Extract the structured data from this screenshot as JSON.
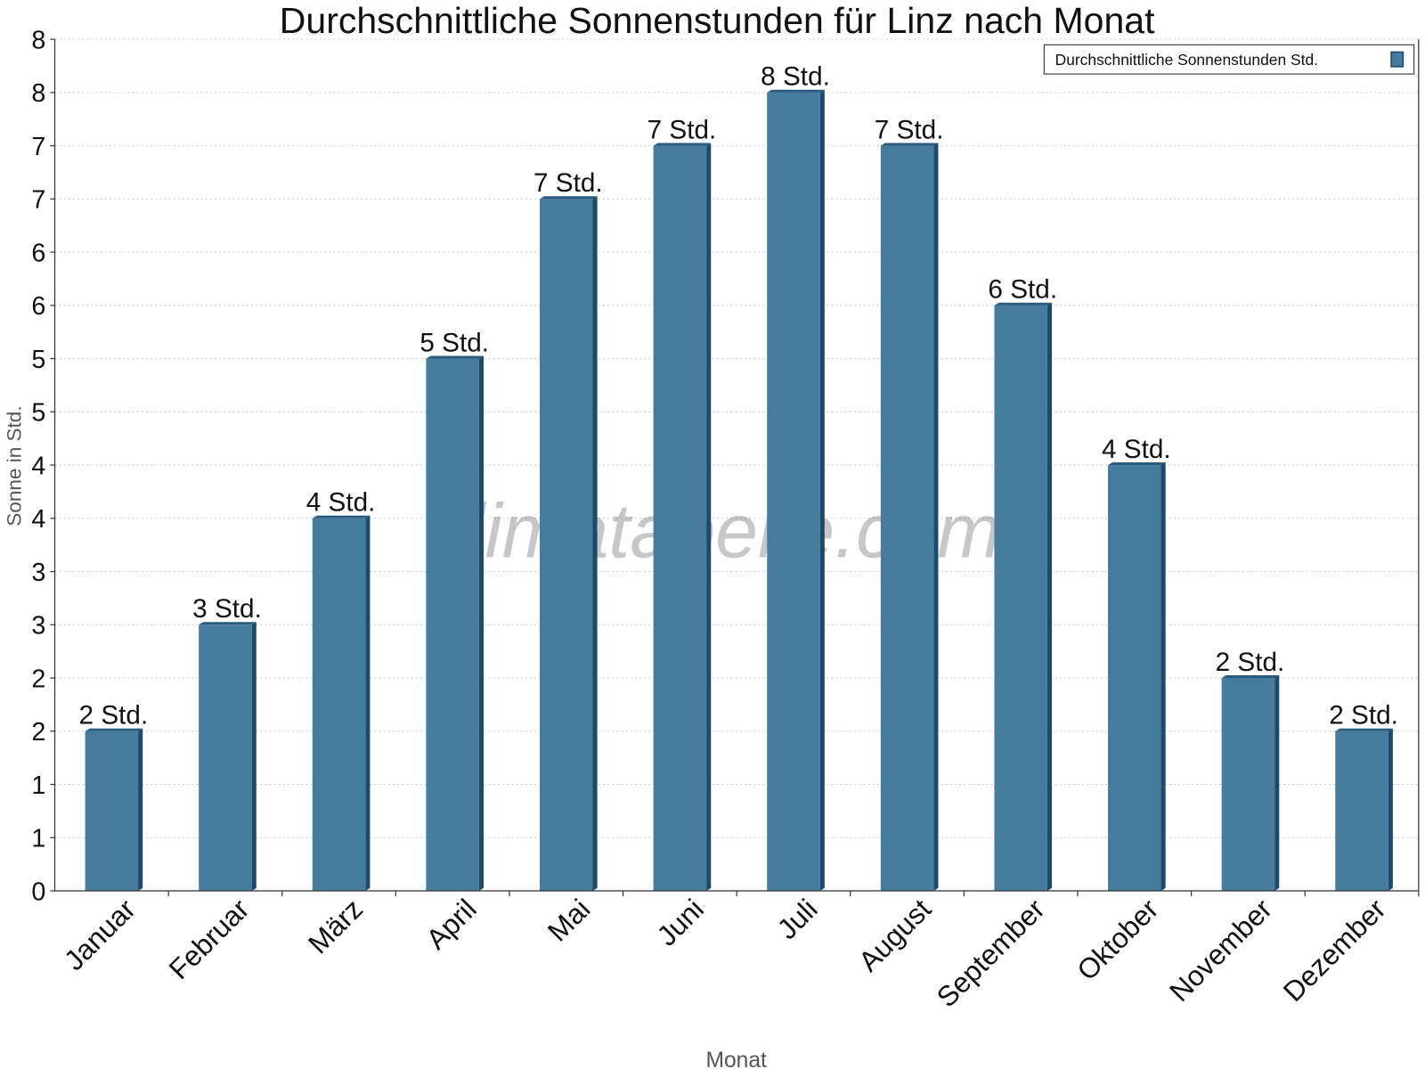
{
  "chart_data": {
    "type": "bar",
    "title": "Durchschnittliche Sonnenstunden für Linz nach Monat",
    "xlabel": "Monat",
    "ylabel": "Sonne in Std.",
    "categories": [
      "Januar",
      "Februar",
      "März",
      "April",
      "Mai",
      "Juni",
      "Juli",
      "August",
      "September",
      "Oktober",
      "November",
      "Dezember"
    ],
    "series": [
      {
        "name": "Durchschnittliche Sonnenstunden Std.",
        "values": [
          1.5,
          2.5,
          3.5,
          5.0,
          6.5,
          7.0,
          7.5,
          7.0,
          5.5,
          4.0,
          2.0,
          1.5
        ],
        "data_labels": [
          "2 Std.",
          "3 Std.",
          "4 Std.",
          "5 Std.",
          "7 Std.",
          "7 Std.",
          "8 Std.",
          "7 Std.",
          "6 Std.",
          "4 Std.",
          "2 Std.",
          "2 Std."
        ]
      }
    ],
    "ylim": [
      0,
      8
    ],
    "yticks": [
      0,
      0.5,
      1,
      1.5,
      2,
      2.5,
      3,
      3.5,
      4,
      4.5,
      5,
      5.5,
      6,
      6.5,
      7,
      7.5,
      8
    ],
    "ytick_labels": [
      "0",
      "1",
      "1",
      "2",
      "2",
      "3",
      "3",
      "4",
      "4",
      "5",
      "5",
      "6",
      "6",
      "7",
      "7",
      "8",
      "8"
    ],
    "grid": true,
    "legend_position": "top-right",
    "colors": {
      "bar": "#457b9d",
      "bar_side": "#1d4a6b",
      "bar_top": "#2a5a7e"
    },
    "watermark": "klimatabelle.com"
  }
}
